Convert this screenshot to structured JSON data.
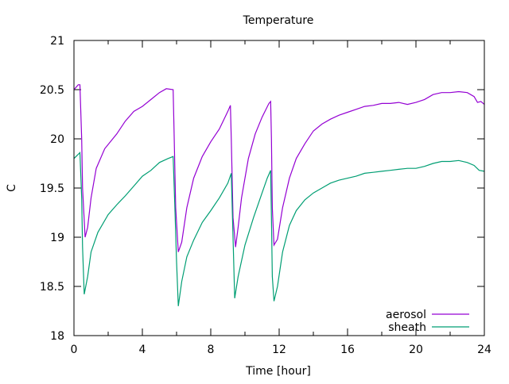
{
  "chart_data": {
    "type": "line",
    "title": "Temperature",
    "xlabel": "Time [hour]",
    "ylabel": "C",
    "xlim": [
      0,
      24
    ],
    "ylim": [
      18,
      21
    ],
    "xticks": [
      0,
      4,
      8,
      12,
      16,
      20,
      24
    ],
    "xtick_labels": [
      "0",
      "4",
      "8",
      "12",
      "16",
      "20",
      "24"
    ],
    "xminor": [
      2,
      6,
      10,
      14,
      18,
      22
    ],
    "yticks": [
      18,
      18.5,
      19,
      19.5,
      20,
      20.5,
      21
    ],
    "ytick_labels": [
      "18",
      "18.5",
      "19",
      "19.5",
      "20",
      "20.5",
      "21"
    ],
    "grid": false,
    "legend_position": "bottom-right",
    "series": [
      {
        "name": "aerosol",
        "color": "#9400d3",
        "points": [
          [
            0,
            20.5
          ],
          [
            0.25,
            20.55
          ],
          [
            0.35,
            20.55
          ],
          [
            0.45,
            20.0
          ],
          [
            0.5,
            19.5
          ],
          [
            0.65,
            19.0
          ],
          [
            0.8,
            19.1
          ],
          [
            1.0,
            19.4
          ],
          [
            1.3,
            19.7
          ],
          [
            1.8,
            19.9
          ],
          [
            2.5,
            20.05
          ],
          [
            3.0,
            20.18
          ],
          [
            3.5,
            20.28
          ],
          [
            4.0,
            20.33
          ],
          [
            4.5,
            20.4
          ],
          [
            5.0,
            20.47
          ],
          [
            5.4,
            20.51
          ],
          [
            5.8,
            20.5
          ],
          [
            5.85,
            20.1
          ],
          [
            5.95,
            19.3
          ],
          [
            6.1,
            18.85
          ],
          [
            6.3,
            18.95
          ],
          [
            6.6,
            19.3
          ],
          [
            7.0,
            19.6
          ],
          [
            7.5,
            19.82
          ],
          [
            8.0,
            19.97
          ],
          [
            8.5,
            20.1
          ],
          [
            9.0,
            20.28
          ],
          [
            9.15,
            20.34
          ],
          [
            9.2,
            20.0
          ],
          [
            9.3,
            19.2
          ],
          [
            9.45,
            18.9
          ],
          [
            9.6,
            19.1
          ],
          [
            9.8,
            19.4
          ],
          [
            10.2,
            19.8
          ],
          [
            10.6,
            20.05
          ],
          [
            11.0,
            20.22
          ],
          [
            11.4,
            20.36
          ],
          [
            11.5,
            20.38
          ],
          [
            11.55,
            20.0
          ],
          [
            11.6,
            19.3
          ],
          [
            11.7,
            18.92
          ],
          [
            11.9,
            18.98
          ],
          [
            12.2,
            19.3
          ],
          [
            12.6,
            19.6
          ],
          [
            13.0,
            19.8
          ],
          [
            13.5,
            19.95
          ],
          [
            14.0,
            20.08
          ],
          [
            14.5,
            20.15
          ],
          [
            15,
            20.2
          ],
          [
            15.5,
            20.24
          ],
          [
            16,
            20.27
          ],
          [
            16.5,
            20.3
          ],
          [
            17,
            20.33
          ],
          [
            17.5,
            20.34
          ],
          [
            18,
            20.36
          ],
          [
            18.5,
            20.36
          ],
          [
            19,
            20.37
          ],
          [
            19.5,
            20.35
          ],
          [
            20,
            20.37
          ],
          [
            20.5,
            20.4
          ],
          [
            21,
            20.45
          ],
          [
            21.5,
            20.47
          ],
          [
            22,
            20.47
          ],
          [
            22.5,
            20.48
          ],
          [
            23,
            20.47
          ],
          [
            23.4,
            20.43
          ],
          [
            23.6,
            20.37
          ],
          [
            23.8,
            20.38
          ],
          [
            24,
            20.35
          ]
        ]
      },
      {
        "name": "sheath",
        "color": "#009e73",
        "points": [
          [
            0,
            19.8
          ],
          [
            0.35,
            19.86
          ],
          [
            0.45,
            19.4
          ],
          [
            0.5,
            18.9
          ],
          [
            0.6,
            18.42
          ],
          [
            0.8,
            18.6
          ],
          [
            1.0,
            18.85
          ],
          [
            1.4,
            19.05
          ],
          [
            2.0,
            19.23
          ],
          [
            2.5,
            19.33
          ],
          [
            3,
            19.42
          ],
          [
            3.5,
            19.52
          ],
          [
            4,
            19.62
          ],
          [
            4.5,
            19.68
          ],
          [
            5,
            19.76
          ],
          [
            5.5,
            19.8
          ],
          [
            5.8,
            19.82
          ],
          [
            5.9,
            19.3
          ],
          [
            6.0,
            18.75
          ],
          [
            6.1,
            18.3
          ],
          [
            6.3,
            18.55
          ],
          [
            6.6,
            18.8
          ],
          [
            7,
            18.97
          ],
          [
            7.5,
            19.15
          ],
          [
            8,
            19.27
          ],
          [
            8.5,
            19.4
          ],
          [
            9,
            19.55
          ],
          [
            9.2,
            19.65
          ],
          [
            9.3,
            19.0
          ],
          [
            9.4,
            18.38
          ],
          [
            9.6,
            18.6
          ],
          [
            10,
            18.92
          ],
          [
            10.5,
            19.2
          ],
          [
            11,
            19.45
          ],
          [
            11.3,
            19.6
          ],
          [
            11.5,
            19.68
          ],
          [
            11.55,
            19.2
          ],
          [
            11.6,
            18.6
          ],
          [
            11.7,
            18.35
          ],
          [
            11.9,
            18.5
          ],
          [
            12.2,
            18.85
          ],
          [
            12.6,
            19.12
          ],
          [
            13,
            19.27
          ],
          [
            13.5,
            19.38
          ],
          [
            14,
            19.45
          ],
          [
            14.5,
            19.5
          ],
          [
            15,
            19.55
          ],
          [
            15.5,
            19.58
          ],
          [
            16,
            19.6
          ],
          [
            16.5,
            19.62
          ],
          [
            17,
            19.65
          ],
          [
            17.5,
            19.66
          ],
          [
            18,
            19.67
          ],
          [
            18.5,
            19.68
          ],
          [
            19,
            19.69
          ],
          [
            19.5,
            19.7
          ],
          [
            20,
            19.7
          ],
          [
            20.5,
            19.72
          ],
          [
            21,
            19.75
          ],
          [
            21.5,
            19.77
          ],
          [
            22,
            19.77
          ],
          [
            22.5,
            19.78
          ],
          [
            23,
            19.76
          ],
          [
            23.4,
            19.73
          ],
          [
            23.7,
            19.68
          ],
          [
            24,
            19.67
          ]
        ]
      }
    ]
  }
}
